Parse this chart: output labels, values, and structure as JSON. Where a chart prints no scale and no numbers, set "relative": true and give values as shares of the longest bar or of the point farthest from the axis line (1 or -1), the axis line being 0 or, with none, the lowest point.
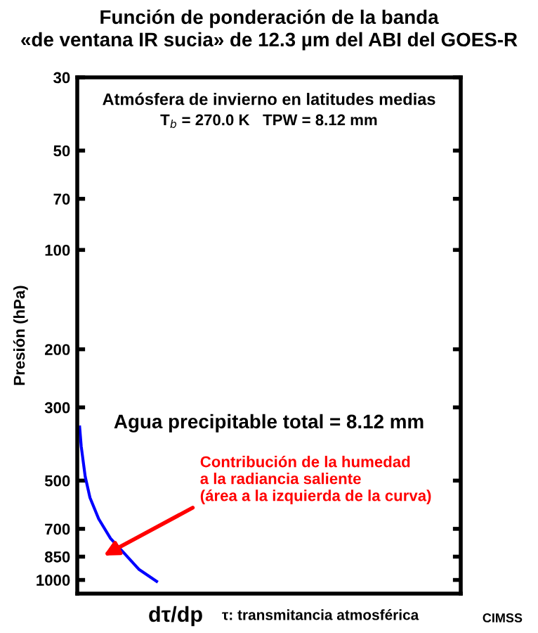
{
  "chart_data": {
    "type": "line",
    "title": "Función de ponderación de la banda\n«de ventana IR sucia» de 12.3 µm del ABI del GOES-R",
    "xlabel": "dτ/dp",
    "ylabel": "Presión (hPa)",
    "relative": true,
    "orientation": "horizontal",
    "log": "y",
    "ylim": [
      1100,
      30
    ],
    "yticks": [
      30,
      50,
      70,
      100,
      200,
      300,
      500,
      700,
      850,
      1000
    ],
    "x": [
      344,
      394,
      486,
      563,
      653,
      749,
      834,
      930,
      1010
    ],
    "series": [
      {
        "color": "#0000ff",
        "values": [
          0.03,
          0.05,
          0.1,
          0.16,
          0.27,
          0.42,
          0.6,
          0.78,
          1.0
        ]
      }
    ],
    "annotations": [
      "Atmósfera de invierno en latitudes medias",
      "T$_{b}$ = 270.0 K   TPW = 8.12 mm",
      "Agua precipitable total = 8.12 mm",
      "Contribución de la humedad\na la radiancia saliente\n(área a la izquierda de la curva)",
      "τ: transmitancia atmosférica",
      "CIMSS"
    ],
    "grid": false,
    "legend": false
  }
}
